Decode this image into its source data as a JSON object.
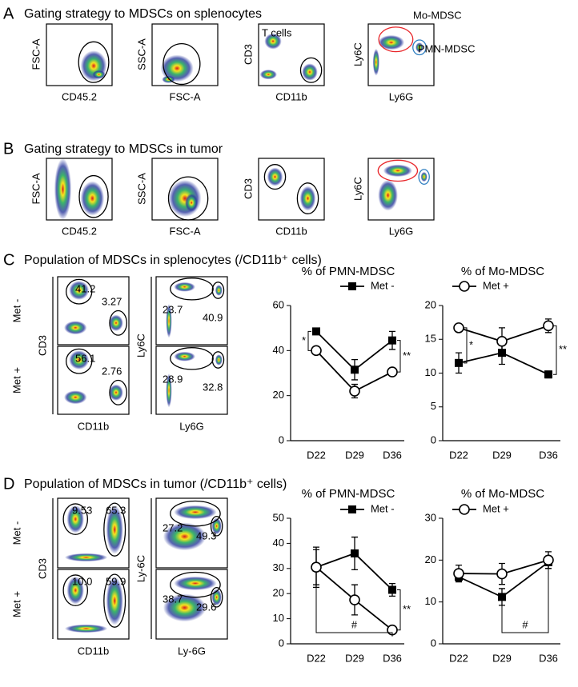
{
  "panels": [
    {
      "letter": "A",
      "title": "Gating strategy to MDSCs on splenocytes",
      "plots": [
        {
          "x_label": "CD45.2",
          "y_label": "FSC-A"
        },
        {
          "x_label": "FSC-A",
          "y_label": "SSC-A"
        },
        {
          "x_label": "CD11b",
          "y_label": "CD3",
          "labels": [
            "T cells"
          ]
        },
        {
          "x_label": "Ly6G",
          "y_label": "Ly6C",
          "labels": [
            "Mo-MDSC",
            "PMN-MDSC"
          ],
          "gate_colors": [
            "#e8262a",
            "#2f7fc1"
          ]
        }
      ]
    },
    {
      "letter": "B",
      "title": "Gating strategy to MDSCs in tumor",
      "plots": [
        {
          "x_label": "CD45.2",
          "y_label": "FSC-A"
        },
        {
          "x_label": "FSC-A",
          "y_label": "SSC-A"
        },
        {
          "x_label": "CD11b",
          "y_label": "CD3"
        },
        {
          "x_label": "Ly6G",
          "y_label": "Ly6C",
          "gate_colors": [
            "#e8262a",
            "#2f7fc1"
          ]
        }
      ]
    },
    {
      "letter": "C",
      "title": "Population of MDSCs in splenocytes (/CD11b⁺ cells)",
      "rows": [
        "Met -",
        "Met +"
      ],
      "columns": [
        {
          "x_label": "CD11b",
          "y_label": "CD3",
          "gates": [
            [
              "41.2",
              "3.27"
            ],
            [
              "56.1",
              "2.76"
            ]
          ]
        },
        {
          "x_label": "Ly6G",
          "y_label": "Ly6C",
          "gates": [
            [
              "23.7",
              "40.9"
            ],
            [
              "28.9",
              "32.8"
            ]
          ]
        }
      ]
    },
    {
      "letter": "D",
      "title": "Population of MDSCs in tumor (/CD11b⁺ cells)",
      "rows": [
        "Met -",
        "Met +"
      ],
      "columns": [
        {
          "x_label": "CD11b",
          "y_label": "CD3",
          "gates": [
            [
              "9.53",
              "65.3"
            ],
            [
              "10.0",
              "59.9"
            ]
          ]
        },
        {
          "x_label": "Ly-6G",
          "y_label": "Ly-6C",
          "gates": [
            [
              "27.2",
              "49.3"
            ],
            [
              "38.7",
              "29.6"
            ]
          ]
        }
      ]
    }
  ],
  "chart_data": [
    {
      "type": "line",
      "title": "% of PMN-MDSC",
      "categories": [
        "D22",
        "D29",
        "D36"
      ],
      "series": [
        {
          "name": "Met -",
          "color": "#000000",
          "marker": "square",
          "values": [
            48.5,
            31.5,
            44.5
          ],
          "errors": [
            1,
            4.5,
            4
          ]
        },
        {
          "color": "#000000",
          "marker": "circle",
          "values": [
            40,
            22,
            30.5
          ],
          "errors": [
            1,
            3,
            1.5
          ]
        }
      ],
      "ylim": [
        0,
        60
      ],
      "yticks": [
        0,
        20,
        40,
        60
      ],
      "annotations": [
        "*",
        "**"
      ]
    },
    {
      "type": "line",
      "title": "% of Mo-MDSC",
      "categories": [
        "D22",
        "D29",
        "D36"
      ],
      "series": [
        {
          "color": "#000000",
          "marker": "square",
          "values": [
            11.5,
            13,
            9.8
          ],
          "errors": [
            1.5,
            1.7,
            0.5
          ]
        },
        {
          "name": "Met +",
          "color": "#000000",
          "marker": "circle",
          "values": [
            16.7,
            14.7,
            17
          ],
          "errors": [
            0.3,
            2,
            1
          ]
        }
      ],
      "ylim": [
        0,
        20
      ],
      "yticks": [
        0,
        5,
        10,
        15,
        20
      ],
      "annotations": [
        "*",
        "**"
      ]
    },
    {
      "type": "line",
      "title": "% of PMN-MDSC",
      "categories": [
        "D22",
        "D29",
        "D36"
      ],
      "series": [
        {
          "name": "Met -",
          "color": "#000000",
          "marker": "square",
          "values": [
            30.5,
            36,
            21.5
          ],
          "errors": [
            8,
            6.5,
            2.5
          ]
        },
        {
          "color": "#000000",
          "marker": "circle",
          "values": [
            30.5,
            17.5,
            5.5
          ],
          "errors": [
            7,
            6,
            0.5
          ]
        }
      ],
      "ylim": [
        0,
        50
      ],
      "yticks": [
        0,
        10,
        20,
        30,
        40,
        50
      ],
      "annotations": [
        "**",
        "#"
      ]
    },
    {
      "type": "line",
      "title": "% of Mo-MDSC",
      "categories": [
        "D22",
        "D29",
        "D36"
      ],
      "series": [
        {
          "color": "#000000",
          "marker": "square",
          "values": [
            16,
            11.2,
            19.5
          ],
          "errors": [
            1,
            2,
            1.5
          ]
        },
        {
          "name": "Met +",
          "color": "#000000",
          "marker": "circle",
          "values": [
            16.8,
            16.7,
            20
          ],
          "errors": [
            2,
            2.5,
            2
          ]
        }
      ],
      "ylim": [
        0,
        30
      ],
      "yticks": [
        0,
        10,
        20,
        30
      ],
      "annotations": [
        "#"
      ]
    }
  ]
}
